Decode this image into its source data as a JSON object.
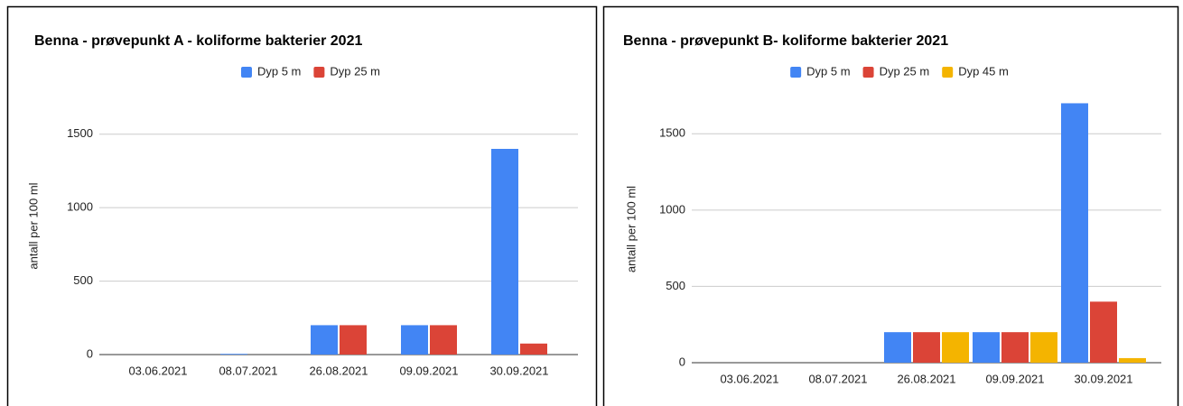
{
  "chart_data": [
    {
      "type": "bar",
      "title": "Benna - prøvepunkt A - koliforme bakterier 2021",
      "y_label": "antall per 100 ml",
      "categories": [
        "03.06.2021",
        "08.07.2021",
        "26.08.2021",
        "09.09.2021",
        "30.09.2021"
      ],
      "series": [
        {
          "name": "Dyp 5 m",
          "color": "#4285f4",
          "values": [
            0,
            5,
            200,
            200,
            1400
          ]
        },
        {
          "name": "Dyp 25 m",
          "color": "#db4437",
          "values": [
            0,
            0,
            200,
            200,
            75
          ]
        }
      ],
      "ylim": [
        0,
        1750
      ],
      "yticks": [
        0,
        500,
        1000,
        1500
      ],
      "grid": true,
      "legend": "top"
    },
    {
      "type": "bar",
      "title": "Benna - prøvepunkt B- koliforme bakterier 2021",
      "y_label": "antall per 100 ml",
      "categories": [
        "03.06.2021",
        "08.07.2021",
        "26.08.2021",
        "09.09.2021",
        "30.09.2021"
      ],
      "series": [
        {
          "name": "Dyp 5 m",
          "color": "#4285f4",
          "values": [
            0,
            0,
            200,
            200,
            1700
          ]
        },
        {
          "name": "Dyp 25 m",
          "color": "#db4437",
          "values": [
            0,
            0,
            200,
            200,
            400
          ]
        },
        {
          "name": "Dyp 45 m",
          "color": "#f4b400",
          "values": [
            0,
            0,
            200,
            200,
            30
          ]
        }
      ],
      "ylim": [
        0,
        1750
      ],
      "yticks": [
        0,
        500,
        1000,
        1500
      ],
      "grid": true,
      "legend": "top"
    }
  ]
}
